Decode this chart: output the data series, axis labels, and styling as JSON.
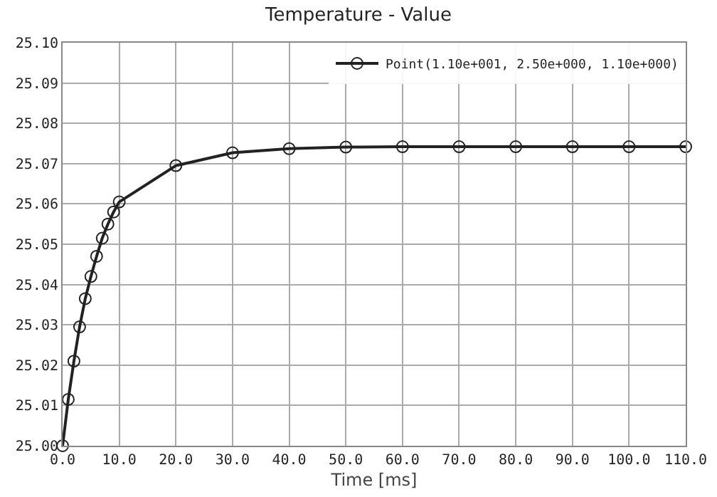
{
  "chart_data": {
    "type": "line",
    "title": "Temperature - Value",
    "xlabel": "Time [ms]",
    "x": [
      0,
      1,
      2,
      3,
      4,
      5,
      6,
      7,
      8,
      9,
      10,
      20,
      30,
      40,
      50,
      60,
      70,
      80,
      90,
      100,
      110
    ],
    "series": [
      {
        "name": "Point(1.10e+001, 2.50e+000, 1.10e+000)",
        "color": "#222222",
        "values": [
          25.0,
          25.0115,
          25.021,
          25.0295,
          25.0365,
          25.042,
          25.047,
          25.0515,
          25.055,
          25.058,
          25.0605,
          25.0695,
          25.0727,
          25.0737,
          25.0741,
          25.0742,
          25.0742,
          25.0742,
          25.0742,
          25.0742,
          25.0742
        ]
      }
    ],
    "xlim": [
      0,
      110
    ],
    "xticks": [
      {
        "value": 0,
        "label": "0.0"
      },
      {
        "value": 10,
        "label": "10.0"
      },
      {
        "value": 20,
        "label": "20.0"
      },
      {
        "value": 30,
        "label": "30.0"
      },
      {
        "value": 40,
        "label": "40.0"
      },
      {
        "value": 50,
        "label": "50.0"
      },
      {
        "value": 60,
        "label": "60.0"
      },
      {
        "value": 70,
        "label": "70.0"
      },
      {
        "value": 80,
        "label": "80.0"
      },
      {
        "value": 90,
        "label": "90.0"
      },
      {
        "value": 100,
        "label": "100.0"
      },
      {
        "value": 110,
        "label": "110.0"
      }
    ],
    "ylim": [
      25.0,
      25.1
    ],
    "yticks": [
      {
        "value": 25.0,
        "label": "25.00"
      },
      {
        "value": 25.01,
        "label": "25.01"
      },
      {
        "value": 25.02,
        "label": "25.02"
      },
      {
        "value": 25.03,
        "label": "25.03"
      },
      {
        "value": 25.04,
        "label": "25.04"
      },
      {
        "value": 25.05,
        "label": "25.05"
      },
      {
        "value": 25.06,
        "label": "25.06"
      },
      {
        "value": 25.07,
        "label": "25.07"
      },
      {
        "value": 25.08,
        "label": "25.08"
      },
      {
        "value": 25.09,
        "label": "25.09"
      },
      {
        "value": 25.1,
        "label": "25.10"
      }
    ],
    "grid": true,
    "legend": "top right",
    "marker": "circle",
    "line_style": "solid"
  }
}
